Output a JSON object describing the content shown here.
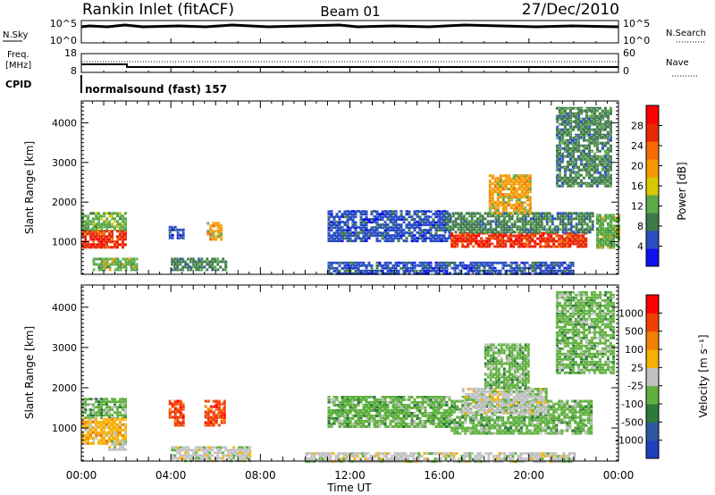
{
  "header": {
    "station": "Rankin Inlet (fitACF)",
    "beam": "Beam 01",
    "date": "27/Dec/2010"
  },
  "summary": {
    "nsky_label": "N.Sky",
    "nsky_top": "10^5",
    "nsky_bottom": "10^0",
    "nsearch_label": "N.Search",
    "nsearch_top": "10^5",
    "nsearch_bottom": "10^0",
    "freq_label": "Freq.",
    "freq_unit": "[MHz]",
    "freq_top": "18",
    "freq_bottom": "8",
    "nave_label": "Nave",
    "nave_top": "60",
    "nave_bottom": "0",
    "cpid_label": "CPID",
    "cpid_value": "normalsound (fast) 157"
  },
  "colors": {
    "power": [
      "#1010ee",
      "#2a4ec2",
      "#3f7a4a",
      "#5aaa46",
      "#d8c800",
      "#f39a00",
      "#f66a00",
      "#e82800",
      "#ff0000"
    ],
    "velocity": [
      "#2040c0",
      "#3058a0",
      "#2c7a3a",
      "#60b040",
      "#c0c0c0",
      "#f5b000",
      "#f08000",
      "#f04000",
      "#ff0000"
    ]
  },
  "chart_data": [
    {
      "type": "heatmap",
      "ylabel": "Slant Range [km]",
      "xlabel": "Time UT",
      "x_ticks": [
        "00:00",
        "04:00",
        "08:00",
        "12:00",
        "16:00",
        "20:00",
        "00:00"
      ],
      "xlim": [
        0,
        24
      ],
      "y_ticks": [
        "1000",
        "2000",
        "3000",
        "4000"
      ],
      "ylim": [
        180,
        4550
      ],
      "colorbar_label": "Power [dB]",
      "colorbar_ticks": [
        "4",
        "8",
        "12",
        "16",
        "20",
        "24",
        "28"
      ],
      "colorbar_range": [
        0,
        32
      ],
      "regions": [
        {
          "t": [
            0.0,
            2.0
          ],
          "r": [
            850,
            1300
          ],
          "value": 26
        },
        {
          "t": [
            0.0,
            2.0
          ],
          "r": [
            1300,
            1750
          ],
          "value": 12
        },
        {
          "t": [
            0.5,
            2.5
          ],
          "r": [
            300,
            600
          ],
          "value": 14
        },
        {
          "t": [
            4.0,
            6.4
          ],
          "r": [
            300,
            600
          ],
          "value": 10
        },
        {
          "t": [
            5.6,
            6.2
          ],
          "r": [
            1050,
            1500
          ],
          "value": 18
        },
        {
          "t": [
            3.9,
            4.6
          ],
          "r": [
            1100,
            1400
          ],
          "value": 6
        },
        {
          "t": [
            11.0,
            16.5
          ],
          "r": [
            1050,
            1800
          ],
          "value": 6
        },
        {
          "t": [
            16.5,
            22.6
          ],
          "r": [
            850,
            1250
          ],
          "value": 26
        },
        {
          "t": [
            16.2,
            22.8
          ],
          "r": [
            1250,
            1750
          ],
          "value": 10
        },
        {
          "t": [
            18.2,
            20.0
          ],
          "r": [
            1750,
            2700
          ],
          "value": 18
        },
        {
          "t": [
            21.2,
            23.7
          ],
          "r": [
            2400,
            4400
          ],
          "value": 8
        },
        {
          "t": [
            11.0,
            22.0
          ],
          "r": [
            200,
            500
          ],
          "value": 6
        },
        {
          "t": [
            23.0,
            24.0
          ],
          "r": [
            850,
            1700
          ],
          "value": 14
        }
      ]
    },
    {
      "type": "heatmap",
      "ylabel": "Slant Range [km]",
      "xlabel": "Time UT",
      "x_ticks": [
        "00:00",
        "04:00",
        "08:00",
        "12:00",
        "16:00",
        "20:00",
        "00:00"
      ],
      "xlim": [
        0,
        24
      ],
      "y_ticks": [
        "1000",
        "2000",
        "3000",
        "4000"
      ],
      "ylim": [
        180,
        4550
      ],
      "colorbar_label": "Velocity [m s⁻¹]",
      "colorbar_ticks": [
        "1000",
        "500",
        "100",
        "25",
        "-25",
        "-100",
        "-500",
        "-1000"
      ],
      "colorbar_range": [
        -1000,
        1000
      ],
      "regions": [
        {
          "t": [
            0.0,
            2.0
          ],
          "r": [
            1250,
            1750
          ],
          "value": -300
        },
        {
          "t": [
            0.0,
            2.0
          ],
          "r": [
            650,
            1250
          ],
          "value": 150
        },
        {
          "t": [
            1.2,
            2.0
          ],
          "r": [
            500,
            700
          ],
          "value": 0
        },
        {
          "t": [
            3.9,
            4.6
          ],
          "r": [
            1100,
            1700
          ],
          "value": 700
        },
        {
          "t": [
            5.5,
            6.4
          ],
          "r": [
            1050,
            1700
          ],
          "value": 700
        },
        {
          "t": [
            4.0,
            7.5
          ],
          "r": [
            200,
            550
          ],
          "value": -80
        },
        {
          "t": [
            11.0,
            16.5
          ],
          "r": [
            1050,
            1800
          ],
          "value": -200
        },
        {
          "t": [
            16.5,
            22.8
          ],
          "r": [
            850,
            1700
          ],
          "value": -300
        },
        {
          "t": [
            17.0,
            20.8
          ],
          "r": [
            1400,
            2000
          ],
          "value": 0
        },
        {
          "t": [
            18.0,
            20.0
          ],
          "r": [
            2000,
            3100
          ],
          "value": -250
        },
        {
          "t": [
            21.2,
            23.8
          ],
          "r": [
            2400,
            4400
          ],
          "value": -200
        },
        {
          "t": [
            10.0,
            22.0
          ],
          "r": [
            200,
            400
          ],
          "value": 0
        }
      ]
    }
  ]
}
